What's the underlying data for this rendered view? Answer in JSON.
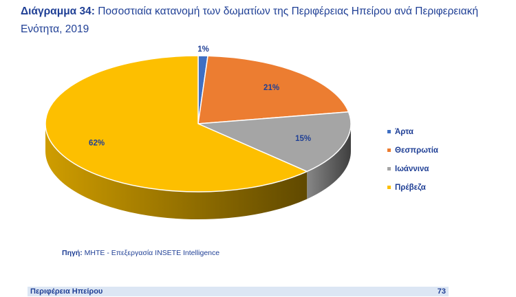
{
  "header": {
    "title_lead": "Διάγραμμα 34:",
    "title_rest": " Ποσοστιαία κατανομή των δωματίων της Περιφέρειας Ηπείρου ανά Περιφερειακή Ενότητα, 2019"
  },
  "chart_data": {
    "type": "pie",
    "style": "3d",
    "categories": [
      "Άρτα",
      "Θεσπρωτία",
      "Ιωάννινα",
      "Πρέβεζα"
    ],
    "values": [
      1,
      21,
      15,
      62
    ],
    "data_labels": [
      "1%",
      "21%",
      "15%",
      "62%"
    ],
    "colors": [
      "#3f6fc3",
      "#ec7d31",
      "#a5a5a5",
      "#fdbf00"
    ],
    "legend_position": "right"
  },
  "source": {
    "lead": "Πηγή:",
    "text": " ΜΗΤΕ - Επεξεργασία INSETE Intelligence"
  },
  "footer": {
    "region": "Περιφέρεια Ηπείρου",
    "page": "73"
  }
}
